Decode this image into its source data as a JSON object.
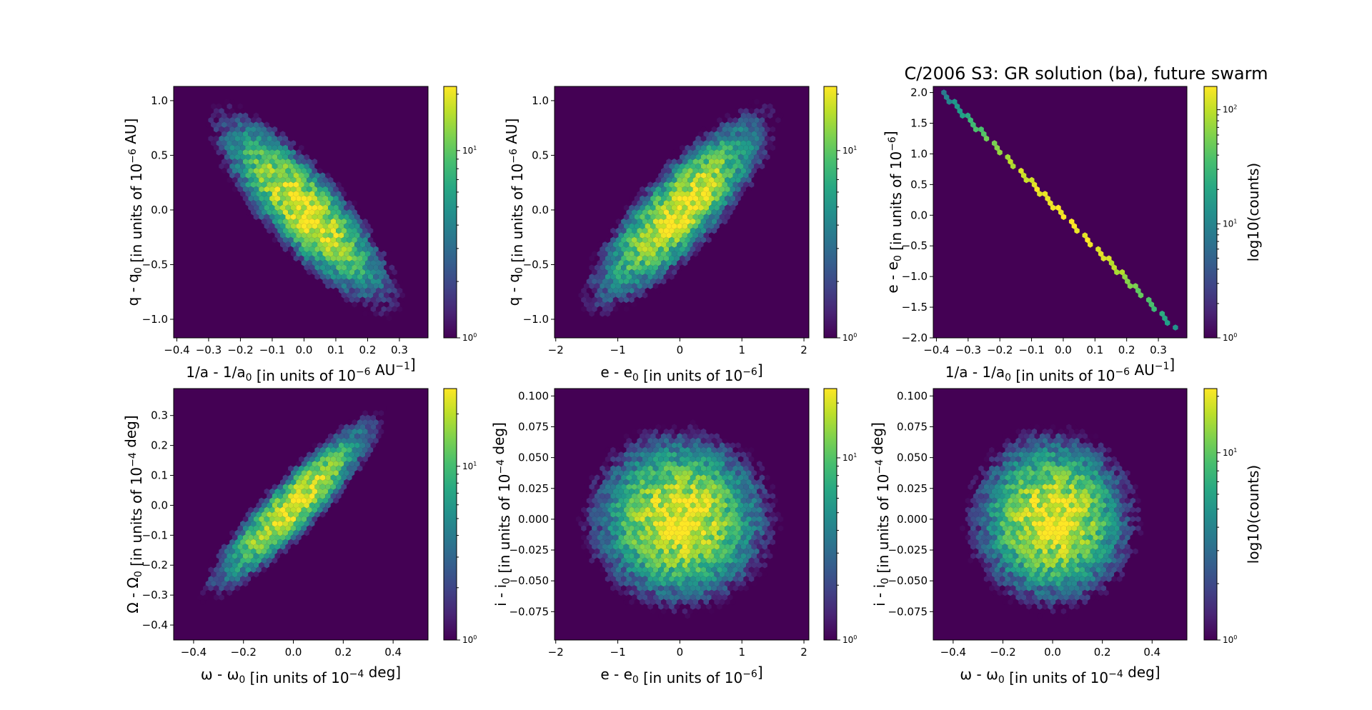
{
  "figure": {
    "title": "C/2006 S3: GR solution (ba), future swarm"
  },
  "colors": {
    "background": "#440154",
    "viridis": [
      "#440154",
      "#482878",
      "#3e4a89",
      "#31688e",
      "#26828e",
      "#1f9e89",
      "#35b779",
      "#6ece58",
      "#b5de2b",
      "#fde725"
    ]
  },
  "chart_data": [
    {
      "type": "heatmap",
      "subtype": "hexbin",
      "panel": "top-left",
      "xlabel": "1/a - 1/a0 [in units of 10^-6 AU^-1]",
      "ylabel": "q - q0 [in units of 10^-6 AU]",
      "xlim": [
        -0.41,
        0.39
      ],
      "ylim": [
        -1.17,
        1.13
      ],
      "xticks": [
        -0.4,
        -0.3,
        -0.2,
        -0.1,
        0.0,
        0.1,
        0.2,
        0.3
      ],
      "xtick_labels": [
        "−0.4",
        "−0.3",
        "−0.2",
        "−0.1",
        "0.0",
        "0.1",
        "0.2",
        "0.3"
      ],
      "yticks": [
        -1.0,
        -0.5,
        0.0,
        0.5,
        1.0
      ],
      "ytick_labels": [
        "−1.0",
        "−0.5",
        "0.0",
        "0.5",
        "1.0"
      ],
      "distribution": {
        "mean_x": 0.0,
        "mean_y": 0.0,
        "sd_x": 0.12,
        "sd_y": 0.38,
        "correlation": -0.82,
        "peak_counts": 22
      },
      "colorbar": {
        "label": "",
        "scale": "log",
        "range": [
          1,
          22
        ],
        "tick_values": [
          1,
          10
        ],
        "tick_labels": [
          "10^0",
          "10^1"
        ]
      }
    },
    {
      "type": "heatmap",
      "subtype": "hexbin",
      "panel": "top-middle",
      "xlabel": "e - e0 [in units of 10^-6]",
      "ylabel": "q - q0 [in units of 10^-6 AU]",
      "xlim": [
        -2.02,
        2.08
      ],
      "ylim": [
        -1.17,
        1.13
      ],
      "xticks": [
        -2,
        -1,
        0,
        1,
        2
      ],
      "xtick_labels": [
        "−2",
        "−1",
        "0",
        "1",
        "2"
      ],
      "yticks": [
        -1.0,
        -0.5,
        0.0,
        0.5,
        1.0
      ],
      "ytick_labels": [
        "−1.0",
        "−0.5",
        "0.0",
        "0.5",
        "1.0"
      ],
      "distribution": {
        "mean_x": 0.0,
        "mean_y": 0.0,
        "sd_x": 0.62,
        "sd_y": 0.38,
        "correlation": 0.82,
        "peak_counts": 22
      },
      "colorbar": {
        "label": "",
        "scale": "log",
        "range": [
          1,
          22
        ],
        "tick_values": [
          1,
          10
        ],
        "tick_labels": [
          "10^0",
          "10^1"
        ]
      }
    },
    {
      "type": "heatmap",
      "subtype": "hexbin",
      "panel": "top-right",
      "title": "C/2006 S3: GR solution (ba), future swarm",
      "xlabel": "1/a - 1/a0 [in units of 10^-6 AU^-1]",
      "ylabel": "e - e0 [in units of 10^-6]",
      "xlim": [
        -0.41,
        0.39
      ],
      "ylim": [
        -2.0,
        2.1
      ],
      "xticks": [
        -0.4,
        -0.3,
        -0.2,
        -0.1,
        0.0,
        0.1,
        0.2,
        0.3
      ],
      "xtick_labels": [
        "−0.4",
        "−0.3",
        "−0.2",
        "−0.1",
        "0.0",
        "0.1",
        "0.2",
        "0.3"
      ],
      "yticks": [
        -2.0,
        -1.5,
        -1.0,
        -0.5,
        0.0,
        0.5,
        1.0,
        1.5,
        2.0
      ],
      "ytick_labels": [
        "−2.0",
        "−1.5",
        "−1.0",
        "−0.5",
        "0.0",
        "0.5",
        "1.0",
        "1.5",
        "2.0"
      ],
      "distribution": {
        "line_slope": -5.25,
        "line_x_range": [
          -0.4,
          0.36
        ],
        "sd_along": 0.12,
        "peak_counts": 160
      },
      "colorbar": {
        "label": "log10(counts)",
        "scale": "log",
        "range": [
          1,
          160
        ],
        "tick_values": [
          1,
          10,
          100
        ],
        "tick_labels": [
          "10^0",
          "10^1",
          "10^2"
        ]
      }
    },
    {
      "type": "heatmap",
      "subtype": "hexbin",
      "panel": "bottom-left",
      "xlabel": "ω - ω0 [in units of 10^-4 deg]",
      "ylabel": "Ω - Ω0 [in units of 10^-4 deg]",
      "xlim": [
        -0.48,
        0.54
      ],
      "ylim": [
        -0.45,
        0.39
      ],
      "xticks": [
        -0.4,
        -0.2,
        0.0,
        0.2,
        0.4
      ],
      "xtick_labels": [
        "−0.4",
        "−0.2",
        "0.0",
        "0.2",
        "0.4"
      ],
      "yticks": [
        -0.4,
        -0.3,
        -0.2,
        -0.1,
        0.0,
        0.1,
        0.2,
        0.3
      ],
      "ytick_labels": [
        "−0.4",
        "−0.3",
        "−0.2",
        "−0.1",
        "0.0",
        "0.1",
        "0.2",
        "0.3"
      ],
      "distribution": {
        "mean_x": 0.0,
        "mean_y": 0.0,
        "sd_x": 0.14,
        "sd_y": 0.12,
        "correlation": 0.9,
        "peak_counts": 28
      },
      "colorbar": {
        "label": "",
        "scale": "log",
        "range": [
          1,
          28
        ],
        "tick_values": [
          1,
          10
        ],
        "tick_labels": [
          "10^0",
          "10^1"
        ]
      }
    },
    {
      "type": "heatmap",
      "subtype": "hexbin",
      "panel": "bottom-middle",
      "xlabel": "e - e0 [in units of 10^-6]",
      "ylabel": "i - i0 [in units of 10^-4 deg]",
      "xlim": [
        -2.02,
        2.08
      ],
      "ylim": [
        -0.098,
        0.106
      ],
      "xticks": [
        -2,
        -1,
        0,
        1,
        2
      ],
      "xtick_labels": [
        "−2",
        "−1",
        "0",
        "1",
        "2"
      ],
      "yticks": [
        -0.075,
        -0.05,
        -0.025,
        0.0,
        0.025,
        0.05,
        0.075,
        0.1
      ],
      "ytick_labels": [
        "−0.075",
        "−0.050",
        "−0.025",
        "0.000",
        "0.025",
        "0.050",
        "0.075",
        "0.100"
      ],
      "distribution": {
        "mean_x": 0.0,
        "mean_y": 0.0,
        "sd_x": 0.62,
        "sd_y": 0.03,
        "correlation": 0.0,
        "peak_counts": 24
      },
      "colorbar": {
        "label": "",
        "scale": "log",
        "range": [
          1,
          24
        ],
        "tick_values": [
          1,
          10
        ],
        "tick_labels": [
          "10^0",
          "10^1"
        ]
      }
    },
    {
      "type": "heatmap",
      "subtype": "hexbin",
      "panel": "bottom-right",
      "xlabel": "ω - ω0 [in units of 10^-4 deg]",
      "ylabel": "i - i0 [in units of 10^-4 deg]",
      "xlim": [
        -0.48,
        0.54
      ],
      "ylim": [
        -0.098,
        0.106
      ],
      "xticks": [
        -0.4,
        -0.2,
        0.0,
        0.2,
        0.4
      ],
      "xtick_labels": [
        "−0.4",
        "−0.2",
        "0.0",
        "0.2",
        "0.4"
      ],
      "yticks": [
        -0.075,
        -0.05,
        -0.025,
        0.0,
        0.025,
        0.05,
        0.075,
        0.1
      ],
      "ytick_labels": [
        "−0.075",
        "−0.050",
        "−0.025",
        "0.000",
        "0.025",
        "0.050",
        "0.075",
        "0.100"
      ],
      "distribution": {
        "mean_x": 0.0,
        "mean_y": 0.0,
        "sd_x": 0.14,
        "sd_y": 0.03,
        "correlation": 0.0,
        "peak_counts": 22
      },
      "colorbar": {
        "label": "log10(counts)",
        "scale": "log",
        "range": [
          1,
          22
        ],
        "tick_values": [
          1,
          10
        ],
        "tick_labels": [
          "10^0",
          "10^1"
        ]
      }
    }
  ]
}
